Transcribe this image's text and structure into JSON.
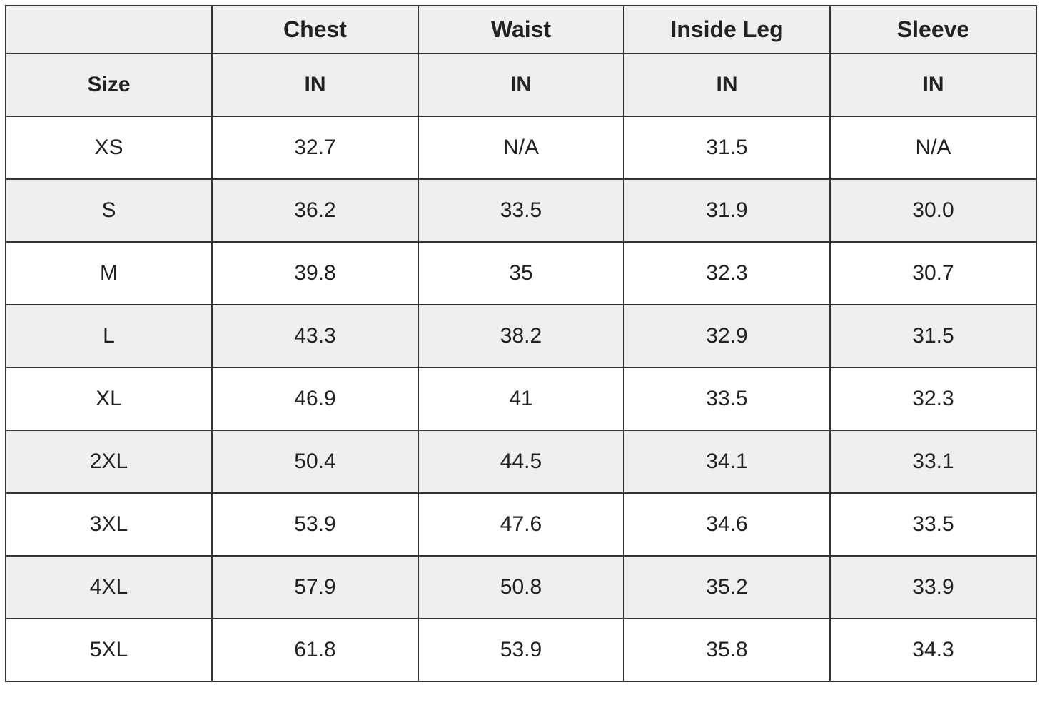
{
  "table": {
    "columns": [
      "Chest",
      "Waist",
      "Inside Leg",
      "Sleeve"
    ],
    "unit_row": {
      "label": "Size",
      "units": [
        "IN",
        "IN",
        "IN",
        "IN"
      ]
    },
    "rows": [
      [
        "XS",
        "32.7",
        "N/A",
        "31.5",
        "N/A"
      ],
      [
        "S",
        "36.2",
        "33.5",
        "31.9",
        "30.0"
      ],
      [
        "M",
        "39.8",
        "35",
        "32.3",
        "30.7"
      ],
      [
        "L",
        "43.3",
        "38.2",
        "32.9",
        "31.5"
      ],
      [
        "XL",
        "46.9",
        "41",
        "33.5",
        "32.3"
      ],
      [
        "2XL",
        "50.4",
        "44.5",
        "34.1",
        "33.1"
      ],
      [
        "3XL",
        "53.9",
        "47.6",
        "34.6",
        "33.5"
      ],
      [
        "4XL",
        "57.9",
        "50.8",
        "35.2",
        "33.9"
      ],
      [
        "5XL",
        "61.8",
        "53.9",
        "35.8",
        "34.3"
      ]
    ]
  }
}
